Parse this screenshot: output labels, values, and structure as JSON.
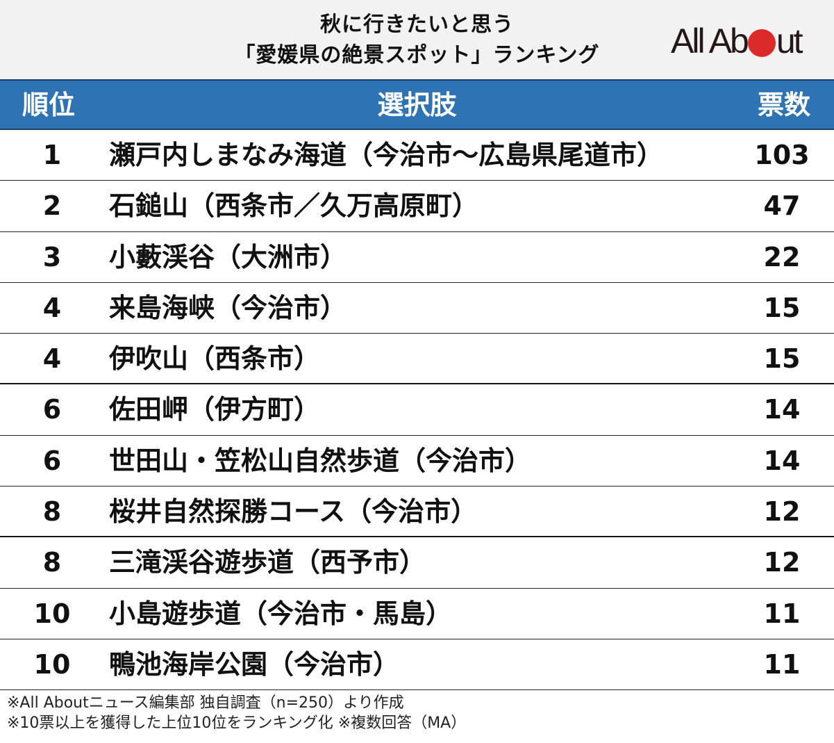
{
  "title": {
    "line1": "秋に行きたいと思う",
    "line2": "「愛媛県の絶景スポット」ランキング"
  },
  "logo": {
    "text_before": "All Ab",
    "text_after": "ut",
    "dot_color": "#dc2a2a"
  },
  "colors": {
    "header_bg": "#2e74b5",
    "title_bg": "#f2f2f2"
  },
  "table": {
    "headers": {
      "rank": "順位",
      "choice": "選択肢",
      "votes": "票数"
    },
    "rows": [
      {
        "rank": "1",
        "name": "瀬戸内しまなみ海道（今治市〜広島県尾道市）",
        "votes": "103"
      },
      {
        "rank": "2",
        "name": "石鎚山（西条市／久万高原町）",
        "votes": "47"
      },
      {
        "rank": "3",
        "name": "小藪渓谷（大洲市）",
        "votes": "22"
      },
      {
        "rank": "4",
        "name": "来島海峡（今治市）",
        "votes": "15"
      },
      {
        "rank": "4",
        "name": "伊吹山（西条市）",
        "votes": "15"
      },
      {
        "rank": "6",
        "name": "佐田岬（伊方町）",
        "votes": "14"
      },
      {
        "rank": "6",
        "name": "世田山・笠松山自然歩道（今治市）",
        "votes": "14"
      },
      {
        "rank": "8",
        "name": "桜井自然探勝コース（今治市）",
        "votes": "12"
      },
      {
        "rank": "8",
        "name": "三滝渓谷遊歩道（西予市）",
        "votes": "12"
      },
      {
        "rank": "10",
        "name": "小島遊歩道（今治市・馬島）",
        "votes": "11"
      },
      {
        "rank": "10",
        "name": "鴨池海岸公園（今治市）",
        "votes": "11"
      }
    ]
  },
  "notes": {
    "line1": "※All Aboutニュース編集部 独自調査（n=250）より作成",
    "line2": "※10票以上を獲得した上位10位をランキング化 ※複数回答（MA）"
  },
  "chart_data": {
    "type": "table",
    "title": "秋に行きたいと思う「愛媛県の絶景スポット」ランキング",
    "columns": [
      "順位",
      "選択肢",
      "票数"
    ],
    "categories": [
      "瀬戸内しまなみ海道（今治市〜広島県尾道市）",
      "石鎚山（西条市／久万高原町）",
      "小藪渓谷（大洲市）",
      "来島海峡（今治市）",
      "伊吹山（西条市）",
      "佐田岬（伊方町）",
      "世田山・笠松山自然歩道（今治市）",
      "桜井自然探勝コース（今治市）",
      "三滝渓谷遊歩道（西予市）",
      "小島遊歩道（今治市・馬島）",
      "鴨池海岸公園（今治市）"
    ],
    "ranks": [
      1,
      2,
      3,
      4,
      4,
      6,
      6,
      8,
      8,
      10,
      10
    ],
    "values": [
      103,
      47,
      22,
      15,
      15,
      14,
      14,
      12,
      12,
      11,
      11
    ],
    "sample_size": 250,
    "notes": [
      "※All Aboutニュース編集部 独自調査（n=250）より作成",
      "※10票以上を獲得した上位10位をランキング化 ※複数回答（MA）"
    ]
  }
}
